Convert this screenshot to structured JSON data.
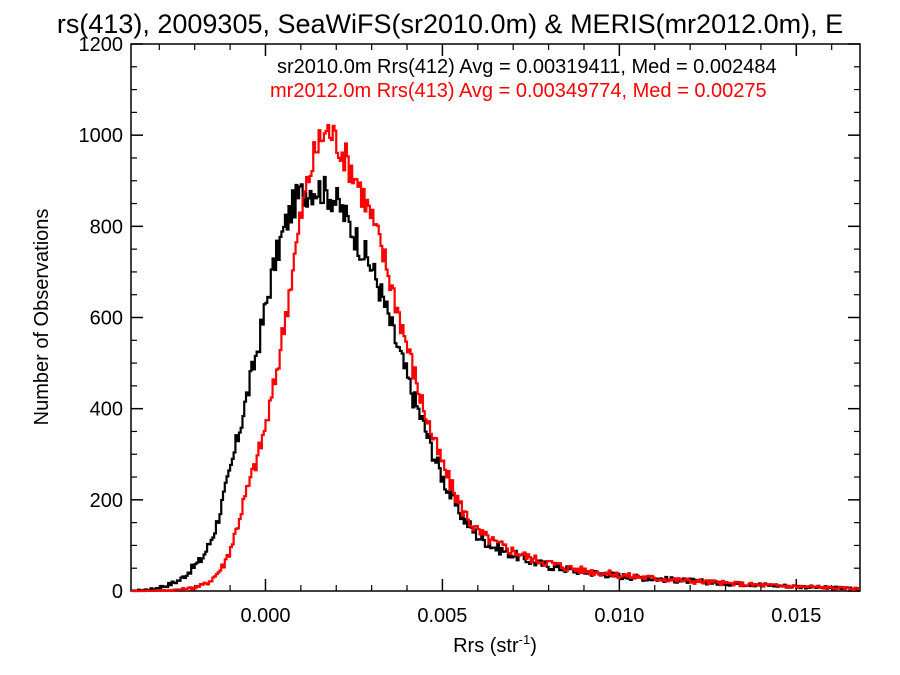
{
  "chart_data": {
    "type": "line",
    "title": "rs(413), 2009305, SeaWiFS(sr2010.0m) & MERIS(mr2012.0m), E",
    "xlabel": "Rrs (str",
    "xlabel_sup": "-1",
    "xlabel_close": ")",
    "ylabel": "Number of Observations",
    "xlim": [
      -0.0038,
      0.0168
    ],
    "ylim": [
      0,
      1200
    ],
    "xticks": [
      0.0,
      0.005,
      0.01,
      0.015
    ],
    "xtick_labels": [
      "0.000",
      "0.005",
      "0.010",
      "0.015"
    ],
    "yticks": [
      0,
      200,
      400,
      600,
      800,
      1000,
      1200
    ],
    "ytick_labels": [
      "0",
      "200",
      "400",
      "600",
      "800",
      "1000",
      "1200"
    ],
    "legend_position": "top-right",
    "series": [
      {
        "name": "sr2010.0m Rrs(412)",
        "legend_text": "sr2010.0m Rrs(412) Avg = 0.00319411, Med = 0.002484",
        "color": "#000000",
        "x": [
          -0.0038,
          -0.0035,
          -0.0032,
          -0.003,
          -0.0028,
          -0.0026,
          -0.0024,
          -0.0022,
          -0.002,
          -0.0018,
          -0.0016,
          -0.0014,
          -0.0012,
          -0.001,
          -0.0008,
          -0.0006,
          -0.0004,
          -0.0002,
          0.0,
          0.0002,
          0.0004,
          0.0006,
          0.0008,
          0.001,
          0.0012,
          0.0014,
          0.0016,
          0.0018,
          0.002,
          0.0022,
          0.0024,
          0.0026,
          0.0028,
          0.003,
          0.0032,
          0.0034,
          0.0036,
          0.0038,
          0.004,
          0.0042,
          0.0044,
          0.0046,
          0.0048,
          0.005,
          0.0052,
          0.0054,
          0.0056,
          0.0058,
          0.006,
          0.0065,
          0.007,
          0.0075,
          0.008,
          0.0085,
          0.009,
          0.0095,
          0.01,
          0.011,
          0.012,
          0.013,
          0.014,
          0.015,
          0.016,
          0.0168
        ],
        "y": [
          0,
          2,
          4,
          8,
          12,
          18,
          25,
          40,
          55,
          70,
          100,
          140,
          200,
          260,
          330,
          400,
          470,
          540,
          620,
          700,
          760,
          810,
          850,
          870,
          880,
          885,
          880,
          870,
          855,
          830,
          800,
          770,
          740,
          710,
          670,
          620,
          570,
          520,
          470,
          420,
          380,
          335,
          290,
          250,
          215,
          185,
          160,
          140,
          120,
          95,
          80,
          65,
          55,
          48,
          42,
          38,
          33,
          27,
          22,
          17,
          14,
          10,
          7,
          5
        ]
      },
      {
        "name": "mr2012.0m Rrs(413)",
        "legend_text": "mr2012.0m Rrs(413) Avg = 0.00349774, Med = 0.00275",
        "color": "#ff0000",
        "x": [
          -0.0038,
          -0.003,
          -0.0026,
          -0.0022,
          -0.002,
          -0.0018,
          -0.0016,
          -0.0014,
          -0.0012,
          -0.001,
          -0.0008,
          -0.0006,
          -0.0004,
          -0.0002,
          0.0,
          0.0002,
          0.0004,
          0.0006,
          0.0008,
          0.001,
          0.0012,
          0.0014,
          0.0016,
          0.0018,
          0.002,
          0.0022,
          0.0024,
          0.0026,
          0.0028,
          0.003,
          0.0032,
          0.0034,
          0.0036,
          0.0038,
          0.004,
          0.0042,
          0.0044,
          0.0046,
          0.0048,
          0.005,
          0.0052,
          0.0054,
          0.0056,
          0.0058,
          0.006,
          0.0065,
          0.007,
          0.0075,
          0.008,
          0.0085,
          0.009,
          0.0095,
          0.01,
          0.011,
          0.012,
          0.013,
          0.014,
          0.015,
          0.016,
          0.0168
        ],
        "y": [
          0,
          1,
          2,
          5,
          8,
          12,
          20,
          35,
          55,
          90,
          140,
          200,
          250,
          300,
          360,
          430,
          520,
          620,
          720,
          820,
          900,
          960,
          1000,
          1010,
          990,
          960,
          930,
          900,
          860,
          820,
          770,
          720,
          660,
          600,
          540,
          480,
          420,
          370,
          320,
          280,
          240,
          205,
          175,
          150,
          130,
          105,
          88,
          72,
          62,
          52,
          45,
          40,
          35,
          28,
          22,
          17,
          13,
          10,
          7,
          5
        ]
      }
    ]
  }
}
